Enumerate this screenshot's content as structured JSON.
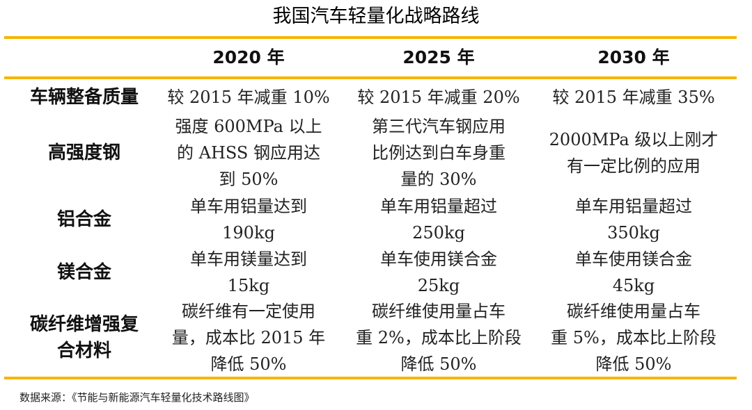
{
  "title": "我国汽车轻量化战略路线",
  "columns": [
    "2020 年",
    "2025 年",
    "2030 年"
  ],
  "rows": [
    {
      "label": "车辆整备质量",
      "cells": [
        "较 2015 年减重 10%",
        "较 2015 年减重 20%",
        "较 2015 年减重 35%"
      ]
    },
    {
      "label": "高强度钢",
      "cells": [
        "强度 600MPa 以上\n的 AHSS 钢应用达\n到 50%",
        "第三代汽车钢应用\n比例达到白车身重\n量的 30%",
        "2000MPa 级以上刚才\n有一定比例的应用"
      ]
    },
    {
      "label": "铝合金",
      "cells": [
        "单车用铝量达到\n190kg",
        "单车用铝量超过\n250kg",
        "单车用铝量超过\n350kg"
      ]
    },
    {
      "label": "镁合金",
      "cells": [
        "单车用镁量达到\n15kg",
        "单车使用镁合金\n25kg",
        "单车使用镁合金\n45kg"
      ]
    },
    {
      "label": "碳纤维增强复\n合材料",
      "cells": [
        "碳纤维有一定使用\n量，成本比 2015 年\n降低 50%",
        "碳纤维使用量占车\n重 2%，成本比上阶段\n降低 50%",
        "碳纤维使用量占车\n重 5%，成本比上阶段\n降低 50%"
      ]
    }
  ],
  "source": "数据来源：《节能与新能源汽车轻量化技术路线图》",
  "colors": {
    "accent": "#F7B500",
    "text": "#111111"
  }
}
